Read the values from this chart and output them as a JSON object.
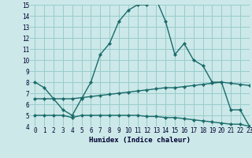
{
  "xlabel": "Humidex (Indice chaleur)",
  "bg_color": "#cce8e8",
  "grid_color": "#99cccc",
  "line_color": "#1a6b6b",
  "x_upper": [
    0,
    1,
    2,
    3,
    4,
    5,
    6,
    7,
    8,
    9,
    10,
    11,
    12,
    13,
    14,
    15,
    16,
    17,
    18,
    19,
    20,
    21,
    22,
    23
  ],
  "y_upper": [
    8.0,
    7.5,
    6.5,
    5.5,
    5.0,
    6.5,
    8.0,
    10.5,
    11.5,
    13.5,
    14.5,
    15.0,
    15.0,
    15.5,
    13.5,
    10.5,
    11.5,
    10.0,
    9.5,
    8.0,
    8.0,
    5.5,
    5.5,
    4.0
  ],
  "x_mid": [
    0,
    1,
    2,
    3,
    4,
    5,
    6,
    7,
    8,
    9,
    10,
    11,
    12,
    13,
    14,
    15,
    16,
    17,
    18,
    19,
    20,
    21,
    22,
    23
  ],
  "y_mid": [
    6.5,
    6.5,
    6.5,
    6.5,
    6.5,
    6.6,
    6.7,
    6.8,
    6.9,
    7.0,
    7.1,
    7.2,
    7.3,
    7.4,
    7.5,
    7.5,
    7.6,
    7.7,
    7.8,
    7.9,
    8.0,
    7.9,
    7.8,
    7.7
  ],
  "x_low": [
    0,
    1,
    2,
    3,
    4,
    5,
    6,
    7,
    8,
    9,
    10,
    11,
    12,
    13,
    14,
    15,
    16,
    17,
    18,
    19,
    20,
    21,
    22,
    23
  ],
  "y_low": [
    5.0,
    5.0,
    5.0,
    5.0,
    4.8,
    5.0,
    5.0,
    5.0,
    5.0,
    5.0,
    5.0,
    5.0,
    4.9,
    4.9,
    4.8,
    4.8,
    4.7,
    4.6,
    4.5,
    4.4,
    4.3,
    4.2,
    4.2,
    4.0
  ],
  "ylim": [
    4,
    15
  ],
  "xlim": [
    -0.5,
    23
  ],
  "yticks": [
    4,
    5,
    6,
    7,
    8,
    9,
    10,
    11,
    12,
    13,
    14,
    15
  ],
  "xticks": [
    0,
    1,
    2,
    3,
    4,
    5,
    6,
    7,
    8,
    9,
    10,
    11,
    12,
    13,
    14,
    15,
    16,
    17,
    18,
    19,
    20,
    21,
    22,
    23
  ],
  "xlabel_fontsize": 6.5,
  "tick_fontsize": 5.5,
  "lw": 1.0,
  "marker_size": 2.2
}
